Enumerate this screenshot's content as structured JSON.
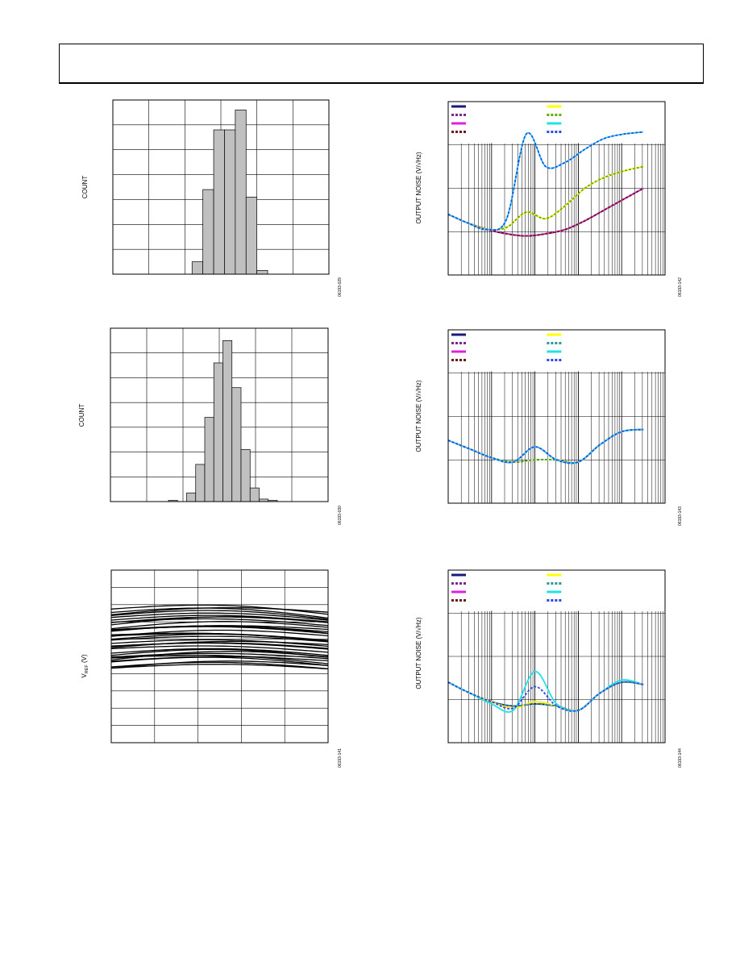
{
  "figures": [
    {
      "id": "fig1",
      "ylabel": "COUNT",
      "fignum": "06193-029"
    },
    {
      "id": "fig2",
      "ylabel": "COUNT",
      "fignum": "06193-030"
    },
    {
      "id": "fig3",
      "ylabel_main": "V",
      "ylabel_sub": "REF",
      "ylabel_unit": " (V)",
      "fignum": "06193-141"
    },
    {
      "id": "fig4",
      "ylabel": "OUTPUT NOISE (V/√Hz)",
      "fignum": "06193-142"
    },
    {
      "id": "fig5",
      "ylabel": "OUTPUT NOISE (V/√Hz)",
      "fignum": "06193-143"
    },
    {
      "id": "fig6",
      "ylabel": "OUTPUT NOISE (V/√Hz)",
      "fignum": "06193-144"
    }
  ],
  "colors": {
    "navy": "#1a1a7a",
    "purple": "#7b2a8c",
    "magenta": "#e020e0",
    "brown": "#6a1a1a",
    "yellow": "#ffff00",
    "teal": "#2a9a9a",
    "cyan": "#20e0e8",
    "blue": "#2a4aee",
    "green": "#66aa00",
    "bar_fill": "#c0c0c0"
  },
  "chart_data": [
    {
      "type": "bar",
      "ylabel": "COUNT",
      "xlim": [
        0,
        6
      ],
      "ylim": [
        0,
        7
      ],
      "bins": [
        2.2,
        2.5,
        2.8,
        3.1,
        3.4,
        3.7
      ],
      "bin_width": 0.3,
      "values": [
        0.5,
        3.4,
        5.8,
        5.8,
        6.6,
        3.1
      ],
      "extra_bins": [
        {
          "x": 4.0,
          "value": 0.15
        }
      ],
      "grid": true
    },
    {
      "type": "bar",
      "ylabel": "COUNT",
      "xlim": [
        0,
        6
      ],
      "ylim": [
        0,
        7
      ],
      "bins": [
        1.6,
        2.1,
        2.35,
        2.6,
        2.85,
        3.1,
        3.35,
        3.6,
        3.85,
        4.1,
        4.35
      ],
      "bin_width": 0.25,
      "values": [
        0.05,
        0.35,
        1.5,
        3.4,
        5.6,
        6.5,
        4.6,
        2.1,
        0.55,
        0.1,
        0.05
      ],
      "grid": true
    },
    {
      "type": "line",
      "ylabel": "V_REF (V)",
      "xlim": [
        0,
        5
      ],
      "ylim": [
        0,
        10
      ],
      "series_count": 34,
      "series_style": "black",
      "grid": true
    },
    {
      "type": "line",
      "ylabel": "OUTPUT NOISE (V/√Hz)",
      "x_scale": "log",
      "xlim": [
        1,
        100000
      ],
      "ylim": [
        0,
        4
      ],
      "legend_placement": "top",
      "series": [
        {
          "color": "navy",
          "style": "solid",
          "y": [
            1.4,
            1.2,
            1.05,
            0.95,
            0.9,
            0.95,
            1.05,
            1.25,
            1.5,
            1.75,
            2.0
          ]
        },
        {
          "color": "purple",
          "style": "dashed",
          "y": [
            1.4,
            1.2,
            1.05,
            0.95,
            0.9,
            0.95,
            1.05,
            1.25,
            1.5,
            1.75,
            2.0
          ]
        },
        {
          "color": "magenta",
          "style": "solid",
          "y": [
            1.4,
            1.2,
            1.05,
            0.95,
            0.9,
            0.95,
            1.05,
            1.25,
            1.5,
            1.75,
            2.0
          ]
        },
        {
          "color": "brown",
          "style": "dashed",
          "y": [
            1.4,
            1.2,
            1.05,
            0.95,
            0.9,
            0.95,
            1.05,
            1.25,
            1.5,
            1.75,
            2.0
          ]
        },
        {
          "color": "yellow",
          "style": "solid",
          "y": [
            1.4,
            1.2,
            1.05,
            1.1,
            1.45,
            1.3,
            1.6,
            2.0,
            2.25,
            2.4,
            2.5
          ]
        },
        {
          "color": "green",
          "style": "dashed",
          "y": [
            1.4,
            1.2,
            1.05,
            1.1,
            1.45,
            1.3,
            1.6,
            2.0,
            2.25,
            2.4,
            2.5
          ]
        },
        {
          "color": "cyan",
          "style": "solid",
          "y": [
            1.4,
            1.2,
            1.05,
            1.3,
            3.25,
            2.5,
            2.6,
            2.9,
            3.15,
            3.25,
            3.3
          ]
        },
        {
          "color": "blue",
          "style": "dashed",
          "y": [
            1.4,
            1.2,
            1.05,
            1.3,
            3.25,
            2.5,
            2.6,
            2.9,
            3.15,
            3.25,
            3.3
          ]
        }
      ]
    },
    {
      "type": "line",
      "ylabel": "OUTPUT NOISE (V/√Hz)",
      "x_scale": "log",
      "xlim": [
        1,
        100000
      ],
      "ylim": [
        0,
        4
      ],
      "legend_placement": "top",
      "series": [
        {
          "color": "navy",
          "style": "solid",
          "y": [
            1.45,
            1.25,
            1.05,
            0.95,
            1.3,
            1.0,
            0.95,
            1.35,
            1.65,
            1.7
          ]
        },
        {
          "color": "purple",
          "style": "dashed",
          "y": [
            1.45,
            1.25,
            1.05,
            0.95,
            1.0,
            1.0,
            0.95,
            1.35,
            1.65,
            1.7
          ]
        },
        {
          "color": "magenta",
          "style": "solid",
          "y": [
            1.45,
            1.25,
            1.05,
            0.95,
            1.0,
            1.0,
            0.95,
            1.35,
            1.65,
            1.7
          ]
        },
        {
          "color": "brown",
          "style": "dashed",
          "y": [
            1.45,
            1.25,
            1.05,
            0.95,
            1.0,
            1.0,
            0.95,
            1.35,
            1.65,
            1.7
          ]
        },
        {
          "color": "yellow",
          "style": "solid",
          "y": [
            1.45,
            1.25,
            1.05,
            0.95,
            1.0,
            1.0,
            0.95,
            1.35,
            1.65,
            1.7
          ]
        },
        {
          "color": "teal",
          "style": "dashed",
          "y": [
            1.45,
            1.25,
            1.05,
            0.95,
            1.0,
            1.0,
            0.95,
            1.35,
            1.65,
            1.7
          ]
        },
        {
          "color": "cyan",
          "style": "solid",
          "y": [
            1.45,
            1.25,
            1.05,
            0.95,
            1.3,
            1.0,
            0.95,
            1.35,
            1.65,
            1.7
          ]
        },
        {
          "color": "blue",
          "style": "dashed",
          "y": [
            1.45,
            1.25,
            1.05,
            0.95,
            1.3,
            1.0,
            0.95,
            1.35,
            1.65,
            1.7
          ]
        }
      ]
    },
    {
      "type": "line",
      "ylabel": "OUTPUT NOISE (V/√Hz)",
      "x_scale": "log",
      "xlim": [
        1,
        100000
      ],
      "ylim": [
        0,
        4
      ],
      "legend_placement": "top",
      "series": [
        {
          "color": "navy",
          "style": "solid",
          "y": [
            1.4,
            1.15,
            0.95,
            0.85,
            0.9,
            0.85,
            0.75,
            1.15,
            1.4,
            1.35
          ]
        },
        {
          "color": "purple",
          "style": "dashed",
          "y": [
            1.4,
            1.15,
            0.95,
            0.85,
            0.9,
            0.85,
            0.75,
            1.15,
            1.4,
            1.35
          ]
        },
        {
          "color": "magenta",
          "style": "solid",
          "y": [
            1.4,
            1.15,
            0.95,
            0.8,
            0.95,
            0.85,
            0.75,
            1.15,
            1.4,
            1.35
          ]
        },
        {
          "color": "brown",
          "style": "dashed",
          "y": [
            1.4,
            1.15,
            0.95,
            0.85,
            0.9,
            0.85,
            0.75,
            1.15,
            1.4,
            1.35
          ]
        },
        {
          "color": "yellow",
          "style": "solid",
          "y": [
            1.4,
            1.15,
            0.95,
            0.8,
            0.95,
            0.85,
            0.75,
            1.15,
            1.4,
            1.35
          ]
        },
        {
          "color": "teal",
          "style": "dashed",
          "y": [
            1.4,
            1.15,
            0.95,
            0.85,
            0.9,
            0.85,
            0.75,
            1.15,
            1.4,
            1.35
          ]
        },
        {
          "color": "cyan",
          "style": "solid",
          "y": [
            1.4,
            1.15,
            0.9,
            0.75,
            1.65,
            0.9,
            0.75,
            1.15,
            1.45,
            1.35
          ]
        },
        {
          "color": "blue",
          "style": "dashed",
          "y": [
            1.4,
            1.15,
            0.95,
            0.8,
            1.3,
            0.85,
            0.75,
            1.15,
            1.4,
            1.35
          ]
        }
      ]
    }
  ]
}
